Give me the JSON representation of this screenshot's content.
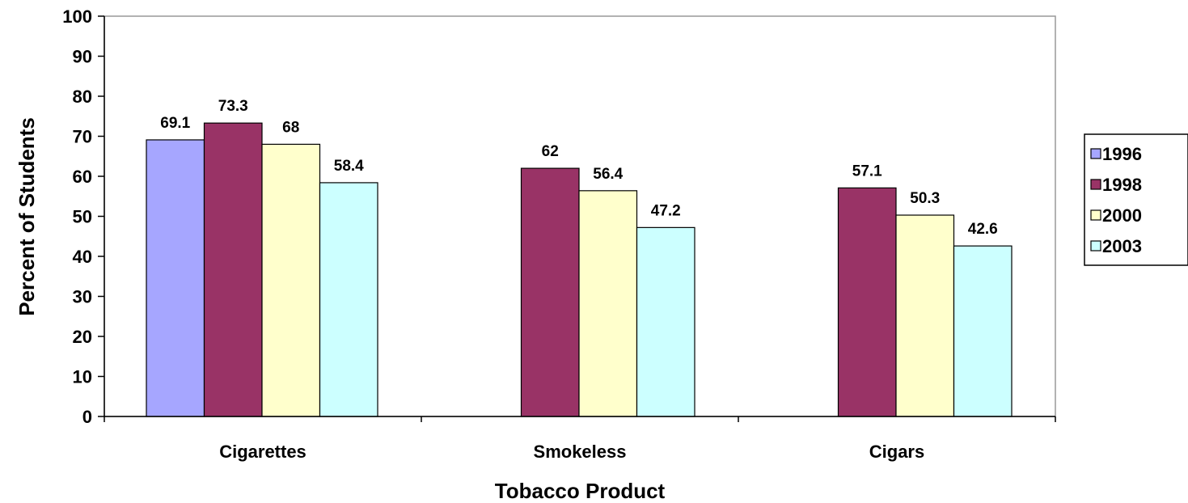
{
  "chart_data": {
    "type": "bar",
    "xlabel": "Tobacco Product",
    "ylabel": "Percent of Students",
    "ylim": [
      0,
      100
    ],
    "yticks": [
      "0",
      "10",
      "20",
      "30",
      "40",
      "50",
      "60",
      "70",
      "80",
      "90",
      "100"
    ],
    "categories": [
      "Cigarettes",
      "Smokeless",
      "Cigars"
    ],
    "series": [
      {
        "name": "1996",
        "color": "#a6a6ff",
        "values": [
          69.1,
          null,
          null
        ],
        "labels": [
          "69.1",
          "",
          ""
        ]
      },
      {
        "name": "1998",
        "color": "#993366",
        "values": [
          73.3,
          62,
          57.1
        ],
        "labels": [
          "73.3",
          "62",
          "57.1"
        ]
      },
      {
        "name": "2000",
        "color": "#ffffcc",
        "values": [
          68,
          56.4,
          50.3
        ],
        "labels": [
          "68",
          "56.4",
          "50.3"
        ]
      },
      {
        "name": "2003",
        "color": "#ccffff",
        "values": [
          58.4,
          47.2,
          42.6
        ],
        "labels": [
          "58.4",
          "47.2",
          "42.6"
        ]
      }
    ],
    "grid": false,
    "legend_position": "right"
  }
}
